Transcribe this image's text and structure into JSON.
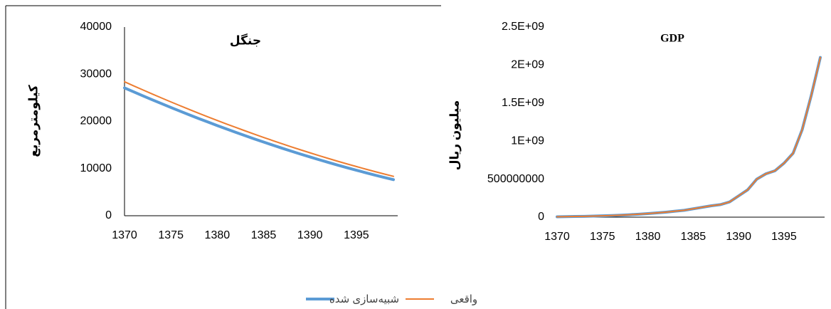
{
  "chart_data": [
    {
      "type": "line",
      "title": "جنگل",
      "y_label": "کیلومترمربع",
      "x": [
        1370,
        1371,
        1372,
        1373,
        1374,
        1375,
        1376,
        1377,
        1378,
        1379,
        1380,
        1381,
        1382,
        1383,
        1384,
        1385,
        1386,
        1387,
        1388,
        1389,
        1390,
        1391,
        1392,
        1393,
        1394,
        1395,
        1396,
        1397,
        1398,
        1399
      ],
      "series": [
        {
          "name": "شبیه‌سازی شده",
          "color": "#5b9bd5",
          "values": [
            27100,
            26250,
            25410,
            24580,
            23760,
            22950,
            22160,
            21380,
            20610,
            19860,
            19120,
            18390,
            17680,
            16980,
            16290,
            15620,
            14960,
            14310,
            13680,
            13060,
            12460,
            11870,
            11290,
            10730,
            10180,
            9650,
            9130,
            8620,
            8130,
            7650
          ]
        },
        {
          "name": "واقعی",
          "color": "#ed7d31",
          "values": [
            28400,
            27520,
            26660,
            25800,
            24960,
            24130,
            23320,
            22520,
            21730,
            20960,
            20200,
            19450,
            18720,
            18000,
            17290,
            16600,
            15920,
            15250,
            14600,
            13960,
            13340,
            12730,
            12130,
            11550,
            10980,
            10430,
            9890,
            9360,
            8850,
            8350
          ]
        }
      ],
      "xlim": [
        1370,
        1399
      ],
      "xticks": [
        1370,
        1375,
        1380,
        1385,
        1390,
        1395
      ],
      "ylim": [
        0,
        40000
      ],
      "yticks": [
        0,
        10000,
        20000,
        30000,
        40000
      ],
      "legend": "bottom"
    },
    {
      "type": "line",
      "title": "GDP",
      "y_label": "میلیون ریال",
      "x": [
        1370,
        1371,
        1372,
        1373,
        1374,
        1375,
        1376,
        1377,
        1378,
        1379,
        1380,
        1381,
        1382,
        1383,
        1384,
        1385,
        1386,
        1387,
        1388,
        1389,
        1390,
        1391,
        1392,
        1393,
        1394,
        1395,
        1396,
        1397,
        1398,
        1399
      ],
      "series": [
        {
          "name": "شبیه‌سازی شده",
          "color": "#5b9bd5",
          "values": [
            5000000,
            7000000,
            9000000,
            11000000,
            14000000,
            17000000,
            21000000,
            26000000,
            32000000,
            39000000,
            47000000,
            56000000,
            66000000,
            78000000,
            90000000,
            110000000,
            130000000,
            150000000,
            165000000,
            200000000,
            280000000,
            360000000,
            500000000,
            570000000,
            610000000,
            710000000,
            840000000,
            1150000000,
            1600000000,
            2100000000
          ]
        },
        {
          "name": "واقعی",
          "color": "#ed7d31",
          "values": [
            5000000,
            7000000,
            9000000,
            11000000,
            14000000,
            17000000,
            21000000,
            26000000,
            32000000,
            39000000,
            47000000,
            56000000,
            66000000,
            78000000,
            90000000,
            110000000,
            130000000,
            150000000,
            165000000,
            200000000,
            280000000,
            360000000,
            500000000,
            570000000,
            610000000,
            710000000,
            840000000,
            1150000000,
            1600000000,
            2100000000
          ]
        }
      ],
      "xlim": [
        1370,
        1399
      ],
      "xticks": [
        1370,
        1375,
        1380,
        1385,
        1390,
        1395
      ],
      "ylim": [
        0,
        2500000000
      ],
      "yticks": [
        0,
        500000000,
        {
          "value": 1000000000,
          "label": "1E+09"
        },
        {
          "value": 1500000000,
          "label": "1.5E+09"
        },
        {
          "value": 2000000000,
          "label": "2E+09"
        },
        {
          "value": 2500000000,
          "label": "2.5E+09"
        }
      ]
    }
  ]
}
